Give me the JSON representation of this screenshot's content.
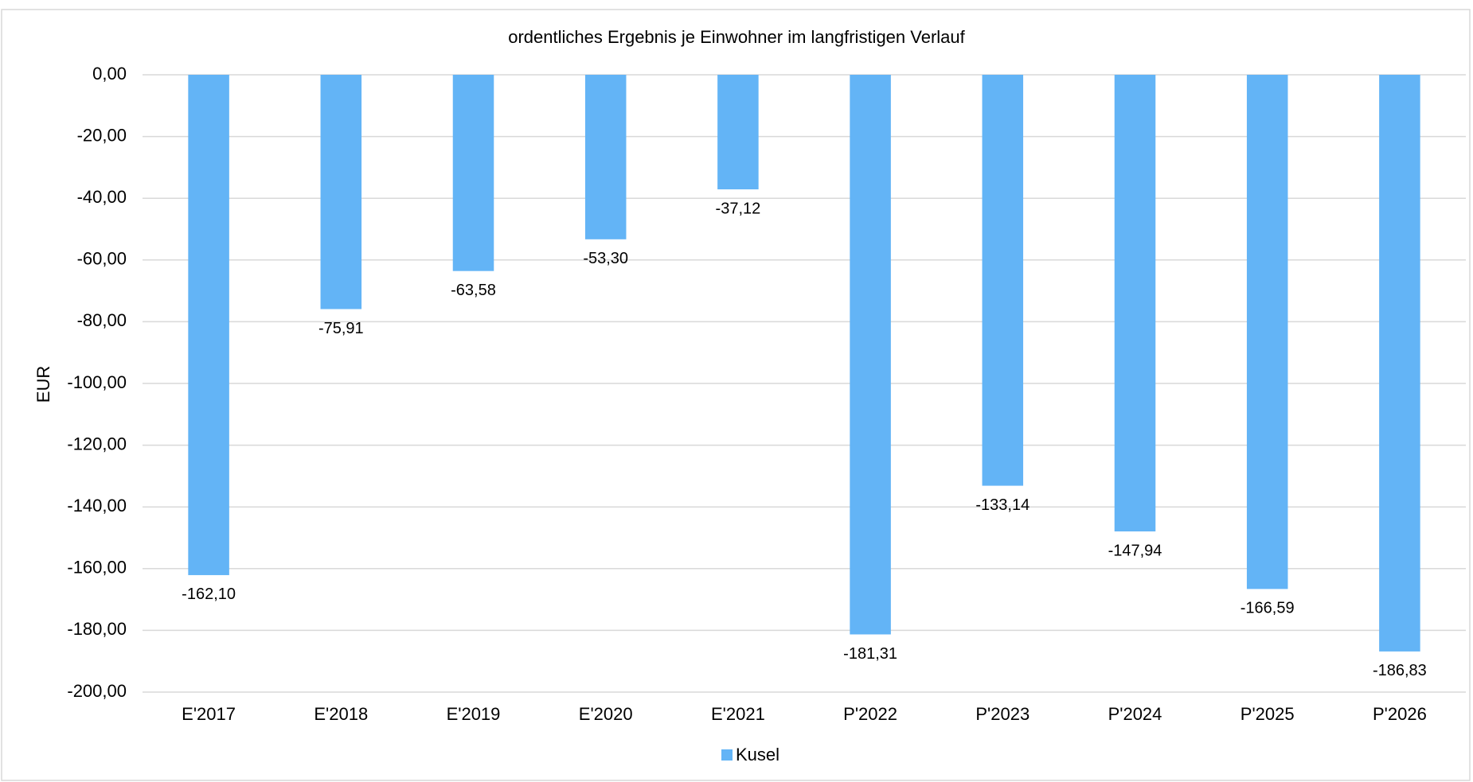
{
  "chart_data": {
    "type": "bar",
    "title": "ordentliches Ergebnis je Einwohner im langfristigen Verlauf",
    "y_label": "EUR",
    "categories": [
      "E'2017",
      "E'2018",
      "E'2019",
      "E'2020",
      "E'2021",
      "P'2022",
      "P'2023",
      "P'2024",
      "P'2025",
      "P'2026"
    ],
    "series": [
      {
        "name": "Kusel",
        "color": "#63b4f6",
        "values": [
          -162.1,
          -75.91,
          -63.58,
          -53.3,
          -37.12,
          -181.31,
          -133.14,
          -147.94,
          -166.59,
          -186.83
        ],
        "value_labels": [
          "-162,10",
          "-75,91",
          "-63,58",
          "-53,30",
          "-37,12",
          "-181,31",
          "-133,14",
          "-147,94",
          "-166,59",
          "-186,83"
        ]
      }
    ],
    "ylim": [
      -200,
      0
    ],
    "yticks": [
      {
        "value": 0,
        "label": "0,00"
      },
      {
        "value": -20,
        "label": "-20,00"
      },
      {
        "value": -40,
        "label": "-40,00"
      },
      {
        "value": -60,
        "label": "-60,00"
      },
      {
        "value": -80,
        "label": "-80,00"
      },
      {
        "value": -100,
        "label": "-100,00"
      },
      {
        "value": -120,
        "label": "-120,00"
      },
      {
        "value": -140,
        "label": "-140,00"
      },
      {
        "value": -160,
        "label": "-160,00"
      },
      {
        "value": -180,
        "label": "-180,00"
      },
      {
        "value": -200,
        "label": "-200,00"
      }
    ],
    "grid": true,
    "legend": "bottom"
  }
}
